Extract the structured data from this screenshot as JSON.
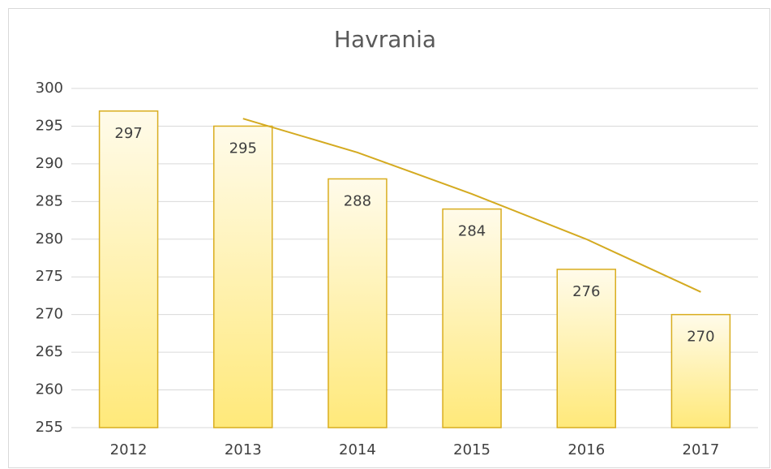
{
  "chart_data": {
    "type": "bar",
    "title": "Havrania",
    "categories": [
      "2012",
      "2013",
      "2014",
      "2015",
      "2016",
      "2017"
    ],
    "values": [
      297,
      295,
      288,
      284,
      276,
      270
    ],
    "color": "#ffe97a",
    "edge_color": "#d9ad1f",
    "trendline": {
      "values": [
        null,
        296,
        291.5,
        286,
        280,
        273
      ],
      "color": "#d4aa20"
    },
    "ylim": [
      255,
      300
    ],
    "yticks": [
      255,
      260,
      265,
      270,
      275,
      280,
      285,
      290,
      295,
      300
    ],
    "grid": true
  }
}
